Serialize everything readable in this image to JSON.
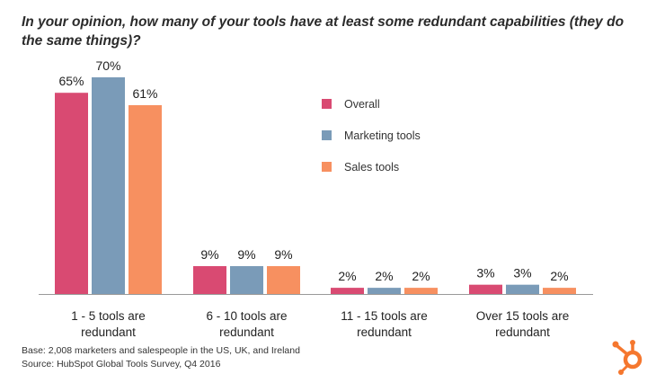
{
  "chart_data": {
    "type": "bar",
    "title": "In your opinion, how many of your tools have at least some redundant capabilities (they do the same things)?",
    "xlabel": "",
    "ylabel": "",
    "ylim": [
      0,
      70
    ],
    "grid": false,
    "legend_position": "top-right",
    "categories": [
      [
        "1 - 5 tools are",
        "redundant"
      ],
      [
        "6 - 10 tools are",
        "redundant"
      ],
      [
        "11 - 15 tools are",
        "redundant"
      ],
      [
        "Over 15 tools are",
        "redundant"
      ]
    ],
    "series": [
      {
        "name": "Overall",
        "color": "#d94a72",
        "values": [
          65,
          9,
          2,
          3
        ]
      },
      {
        "name": "Marketing tools",
        "color": "#7a9bb8",
        "values": [
          70,
          9,
          2,
          3
        ]
      },
      {
        "name": "Sales tools",
        "color": "#f79060",
        "values": [
          61,
          9,
          2,
          2
        ]
      }
    ],
    "value_suffix": "%"
  },
  "footer": {
    "base": "Base: 2,008 marketers and salespeople in the US, UK, and Ireland",
    "source": "Source: HubSpot Global Tools Survey, Q4 2016"
  },
  "brand": {
    "logo_icon": "hubspot-sprocket-icon",
    "color": "#f5772e"
  }
}
